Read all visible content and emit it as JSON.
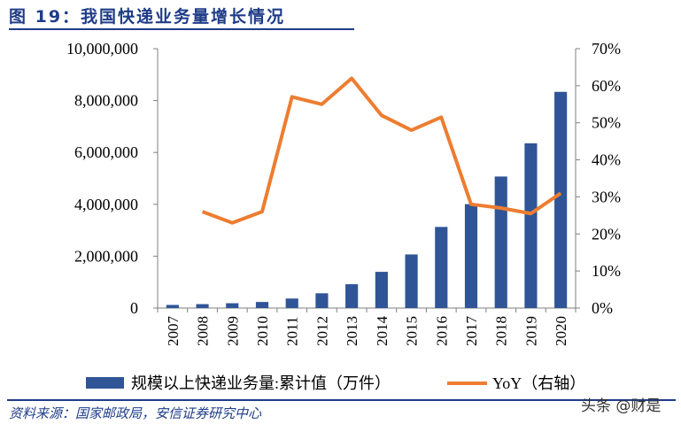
{
  "title": "图 19：我国快递业务量增长情况",
  "source": "资料来源：国家邮政局，安信证券研究中心",
  "watermark": "头条 @财是",
  "chart_data": {
    "type": "bar+line",
    "categories": [
      "2007",
      "2008",
      "2009",
      "2010",
      "2011",
      "2012",
      "2013",
      "2014",
      "2015",
      "2016",
      "2017",
      "2018",
      "2019",
      "2020"
    ],
    "series": [
      {
        "name": "规模以上快递业务量:累计值（万件）",
        "type": "bar",
        "axis": "left",
        "color": "#2f5597",
        "values": [
          120000,
          151000,
          186000,
          234000,
          367000,
          569000,
          919000,
          1396000,
          2067000,
          3128000,
          4006000,
          5071000,
          6352000,
          8336000
        ]
      },
      {
        "name": "YoY（右轴）",
        "type": "line",
        "axis": "right",
        "color": "#ed7d31",
        "values": [
          null,
          26,
          23,
          26,
          57,
          55,
          62,
          52,
          48,
          51.5,
          28,
          27,
          25.5,
          31
        ]
      }
    ],
    "left_axis": {
      "ylim": [
        0,
        10000000
      ],
      "ticks": [
        "0",
        "2,000,000",
        "4,000,000",
        "6,000,000",
        "8,000,000",
        "10,000,000"
      ]
    },
    "right_axis": {
      "ylim": [
        0,
        70
      ],
      "ticks": [
        "0%",
        "10%",
        "20%",
        "30%",
        "40%",
        "50%",
        "60%",
        "70%"
      ]
    },
    "grid": false,
    "legend": "bottom"
  }
}
